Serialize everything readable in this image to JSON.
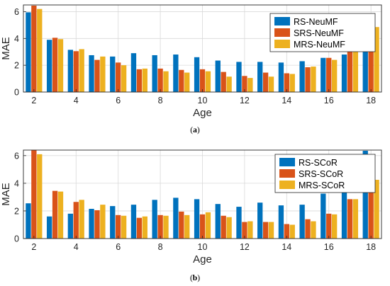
{
  "colors": {
    "rs": "#0072BD",
    "srs": "#D95319",
    "mrs": "#EDB120"
  },
  "chart_data": [
    {
      "type": "bar",
      "caption_label": "a",
      "xlabel": "Age",
      "ylabel": "MAE",
      "x": [
        2,
        3,
        4,
        5,
        6,
        7,
        8,
        9,
        10,
        11,
        12,
        13,
        14,
        15,
        16,
        17,
        18
      ],
      "xticks": [
        2,
        4,
        6,
        8,
        10,
        12,
        14,
        16,
        18
      ],
      "yticks": [
        0,
        2,
        4,
        6
      ],
      "ylim": [
        0,
        6.5
      ],
      "grid": true,
      "legend_position": "top-right",
      "series": [
        {
          "name": "RS-NeuMF",
          "values": [
            5.95,
            3.9,
            3.15,
            2.75,
            2.65,
            2.9,
            2.75,
            2.8,
            2.6,
            2.35,
            2.25,
            2.25,
            2.2,
            2.3,
            2.55,
            2.8,
            4.3
          ]
        },
        {
          "name": "SRS-NeuMF",
          "values": [
            6.45,
            4.05,
            3.05,
            2.4,
            2.2,
            1.7,
            1.75,
            1.65,
            1.7,
            1.5,
            1.2,
            1.45,
            1.4,
            1.85,
            2.55,
            3.4,
            5.2
          ]
        },
        {
          "name": "MRS-NeuMF",
          "values": [
            6.2,
            3.95,
            3.2,
            2.65,
            2.0,
            1.75,
            1.55,
            1.45,
            1.55,
            1.15,
            1.05,
            1.15,
            1.35,
            1.9,
            2.4,
            3.3,
            4.85
          ]
        }
      ]
    },
    {
      "type": "bar",
      "caption_label": "b",
      "xlabel": "Age",
      "ylabel": "MAE",
      "x": [
        2,
        3,
        4,
        5,
        6,
        7,
        8,
        9,
        10,
        11,
        12,
        13,
        14,
        15,
        16,
        17,
        18
      ],
      "xticks": [
        2,
        4,
        6,
        8,
        10,
        12,
        14,
        16,
        18
      ],
      "yticks": [
        0,
        2,
        4,
        6
      ],
      "ylim": [
        0,
        6.4
      ],
      "grid": true,
      "legend_position": "top-right",
      "series": [
        {
          "name": "RS-SCoR",
          "values": [
            2.55,
            1.6,
            1.8,
            2.15,
            2.35,
            2.45,
            2.8,
            2.95,
            2.85,
            2.5,
            2.3,
            2.6,
            2.4,
            2.45,
            3.25,
            3.95,
            6.35
          ]
        },
        {
          "name": "SRS-SCoR",
          "values": [
            6.4,
            3.45,
            2.65,
            2.05,
            1.7,
            1.5,
            1.7,
            1.95,
            1.75,
            1.65,
            1.2,
            1.2,
            1.05,
            1.4,
            1.8,
            2.85,
            4.5
          ]
        },
        {
          "name": "MRS-SCoR",
          "values": [
            6.1,
            3.4,
            2.8,
            2.45,
            1.65,
            1.6,
            1.65,
            1.7,
            1.9,
            1.55,
            1.25,
            1.2,
            1.0,
            1.25,
            1.75,
            2.85,
            4.25
          ]
        }
      ]
    }
  ]
}
